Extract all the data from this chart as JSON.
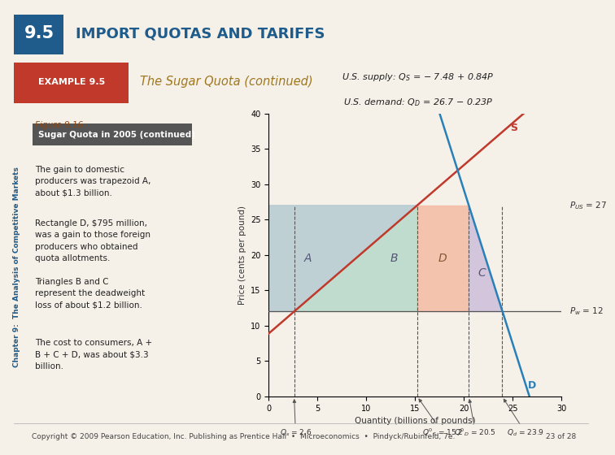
{
  "title_number": "9.5",
  "title_text": "IMPORT QUOTAS AND TARIFFS",
  "example_label": "EXAMPLE 9.5",
  "example_title": "The Sugar Quota (continued)",
  "figure_label": "Figure 9.16",
  "box_label": "Sugar Quota in 2005 (continued)",
  "supply_label_full": "U.S. supply: Q_S = – 7.48 + 0.84P",
  "demand_label_full": "U.S. demand: Q_D = 26.7 – 0.23P",
  "P_US": 27,
  "P_world": 12,
  "Q_s_low": 2.6,
  "Q_s_quota": 15.2,
  "Q_d_quota": 20.5,
  "Q_d_world": 23.9,
  "xlabel": "Quantity (billions of pounds)",
  "ylabel": "Price (cents per pound)",
  "xlim": [
    0,
    30
  ],
  "ylim": [
    0,
    40
  ],
  "xticks": [
    0,
    5,
    10,
    15,
    20,
    25,
    30
  ],
  "yticks": [
    0,
    5,
    10,
    15,
    20,
    25,
    30,
    35,
    40
  ],
  "supply_color": "#c0392b",
  "demand_color": "#2980b9",
  "region_A_color": "#aec6cf",
  "region_B_color": "#b2d8c8",
  "region_D_color": "#f4b8a0",
  "region_C_color": "#c8b8d8",
  "slide_bg": "#f5f0e8",
  "body_texts": [
    "The gain to domestic\nproducers was trapezoid A,\nabout $1.3 billion.",
    "Rectangle D, $795 million,\nwas a gain to those foreign\nproducers who obtained\nquota allotments.",
    "Triangles B and C\nrepresent the deadweight\nloss of about $1.2 billion.",
    "The cost to consumers, A +\nB + C + D, was about $3.3\nbillion."
  ],
  "copyright": "Copyright © 2009 Pearson Education, Inc. Publishing as Prentice Hall  •  Microeconomics  •  Pindyck/Rubinfeld, 7e.",
  "page": "23 of 28"
}
